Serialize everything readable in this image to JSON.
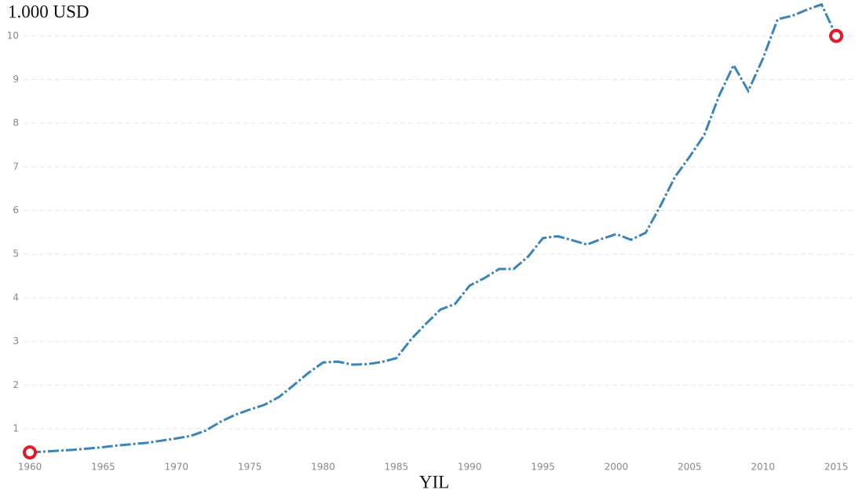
{
  "chart_data": {
    "type": "line",
    "title": "1.000 USD",
    "x_label": "YIL",
    "x": [
      1960,
      1961,
      1962,
      1963,
      1964,
      1965,
      1966,
      1967,
      1968,
      1969,
      1970,
      1971,
      1972,
      1973,
      1974,
      1975,
      1976,
      1977,
      1978,
      1979,
      1980,
      1981,
      1982,
      1983,
      1984,
      1985,
      1986,
      1987,
      1988,
      1989,
      1990,
      1991,
      1992,
      1993,
      1994,
      1995,
      1996,
      1997,
      1998,
      1999,
      2000,
      2001,
      2002,
      2003,
      2004,
      2005,
      2006,
      2007,
      2008,
      2009,
      2010,
      2011,
      2012,
      2013,
      2014,
      2015
    ],
    "series": [
      {
        "color": "#3a84b8",
        "values": [
          0.46,
          0.48,
          0.5,
          0.52,
          0.55,
          0.58,
          0.62,
          0.65,
          0.68,
          0.73,
          0.78,
          0.84,
          0.96,
          1.16,
          1.32,
          1.44,
          1.55,
          1.73,
          2.0,
          2.28,
          2.52,
          2.54,
          2.47,
          2.48,
          2.53,
          2.62,
          3.05,
          3.4,
          3.73,
          3.86,
          4.28,
          4.45,
          4.66,
          4.66,
          4.95,
          5.37,
          5.41,
          5.32,
          5.22,
          5.35,
          5.46,
          5.33,
          5.49,
          6.1,
          6.77,
          7.23,
          7.73,
          8.62,
          9.33,
          8.74,
          9.48,
          10.38,
          10.46,
          10.6,
          10.72,
          10.0
        ]
      }
    ],
    "line_style": "dashdot",
    "markers": "endpoints",
    "marker_color": "#e0192b",
    "xlim": [
      1960,
      2015
    ],
    "xticks": [
      1960,
      1965,
      1970,
      1975,
      1980,
      1985,
      1990,
      1995,
      2000,
      2005,
      2010,
      2015
    ],
    "ylim": [
      0.3,
      10.75
    ],
    "yticks": [
      1,
      2,
      3,
      4,
      5,
      6,
      7,
      8,
      9,
      10
    ],
    "grid": true
  }
}
